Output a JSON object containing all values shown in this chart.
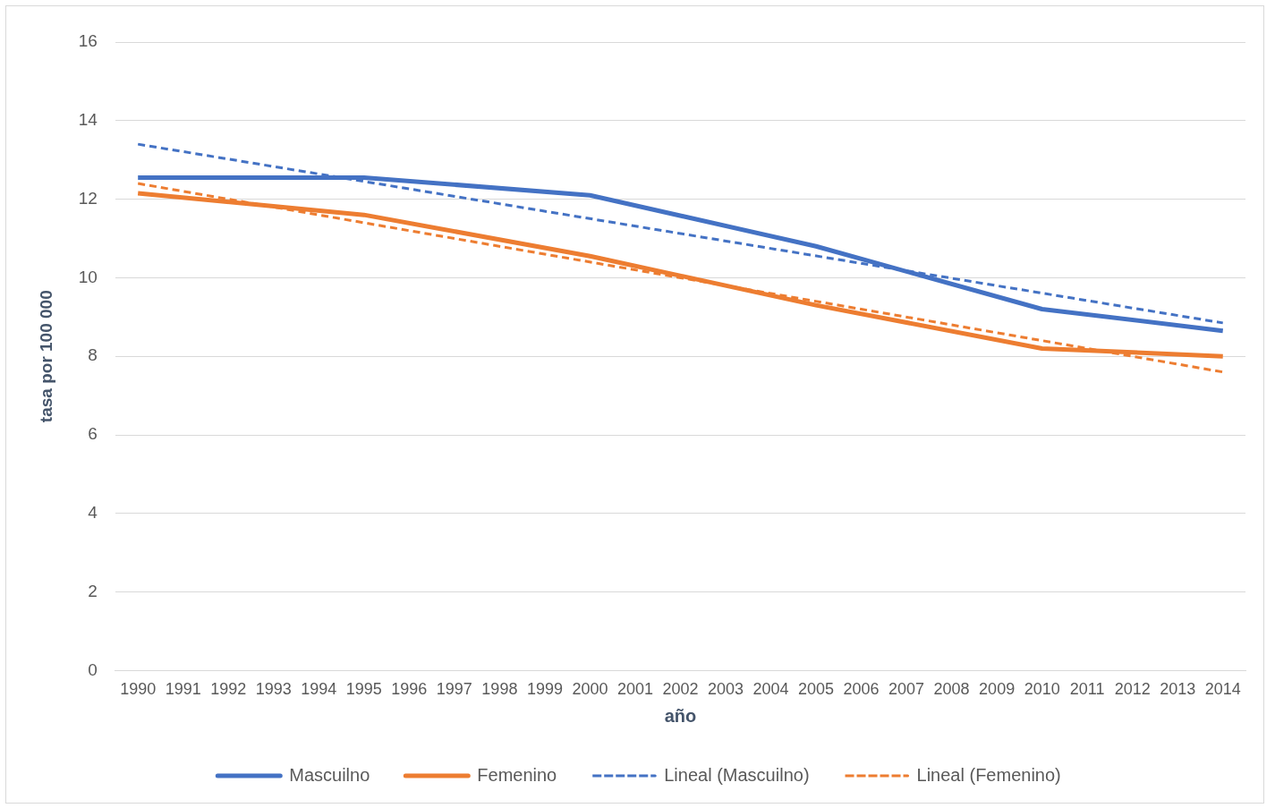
{
  "chart_data": {
    "type": "line",
    "xlabel": "año",
    "ylabel": "tasa por 100 000",
    "series": [
      {
        "name": "Mascuilno",
        "color": "#4472c4",
        "x": [
          1990,
          1995,
          2000,
          2005,
          2010,
          2014
        ],
        "values": [
          12.55,
          12.55,
          12.1,
          10.8,
          9.2,
          8.65
        ],
        "line_style": "solid"
      },
      {
        "name": "Femenino",
        "color": "#ed7d31",
        "x": [
          1990,
          1995,
          2000,
          2005,
          2010,
          2014
        ],
        "values": [
          12.15,
          11.6,
          10.55,
          9.3,
          8.2,
          8.0
        ],
        "line_style": "solid"
      },
      {
        "name": "Lineal (Mascuilno)",
        "color": "#4472c4",
        "x": [
          1990,
          2014
        ],
        "values": [
          13.4,
          8.85
        ],
        "line_style": "dashed"
      },
      {
        "name": "Lineal (Femenino)",
        "color": "#ed7d31",
        "x": [
          1990,
          2014
        ],
        "values": [
          12.4,
          7.6
        ],
        "line_style": "dashed"
      }
    ],
    "xlim": [
      1989.5,
      2014.5
    ],
    "xticks": [
      1990,
      1991,
      1992,
      1993,
      1994,
      1995,
      1996,
      1997,
      1998,
      1999,
      2000,
      2001,
      2002,
      2003,
      2004,
      2005,
      2006,
      2007,
      2008,
      2009,
      2010,
      2011,
      2012,
      2013,
      2014
    ],
    "ylim": [
      0,
      16
    ],
    "yticks": [
      0,
      2,
      4,
      6,
      8,
      10,
      12,
      14,
      16
    ],
    "grid": "y",
    "legend": "bottom",
    "marker": "none"
  }
}
